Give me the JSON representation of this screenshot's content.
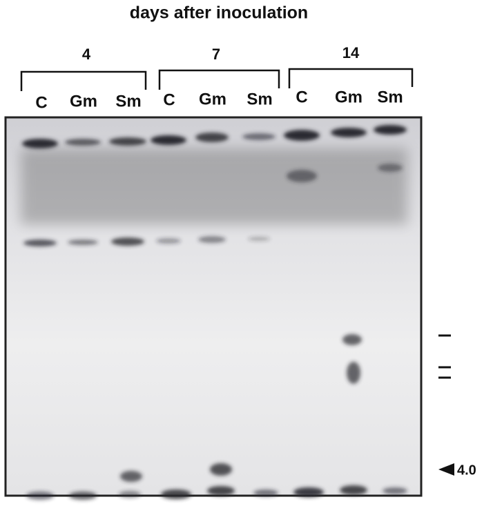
{
  "title": "days after inoculation",
  "groups": [
    {
      "label": "4",
      "lanes": [
        "C",
        "Gm",
        "Sm"
      ]
    },
    {
      "label": "7",
      "lanes": [
        "C",
        "Gm",
        "Sm"
      ]
    },
    {
      "label": "14",
      "lanes": [
        "C",
        "Gm",
        "Sm"
      ]
    }
  ],
  "size_marker": {
    "label": "4.0"
  }
}
